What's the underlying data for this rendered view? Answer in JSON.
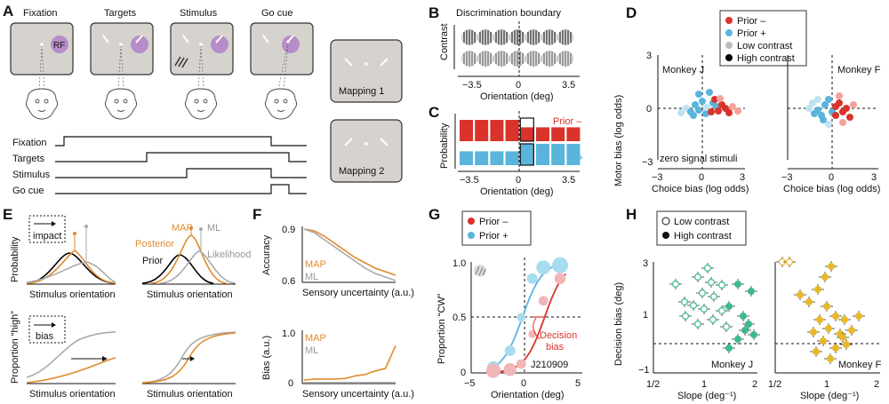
{
  "panel_letters": {
    "A": "A",
    "B": "B",
    "C": "C",
    "D": "D",
    "E": "E",
    "F": "F",
    "G": "G",
    "H": "H"
  },
  "panelA": {
    "screens": [
      "Fixation",
      "Targets",
      "Stimulus",
      "Go cue"
    ],
    "rf_label": "RF",
    "timeline_labels": [
      "Fixation",
      "Targets",
      "Stimulus",
      "Go cue"
    ],
    "mapping1": "Mapping 1",
    "mapping2": "Mapping 2"
  },
  "panelB": {
    "title": "Discrimination boundary",
    "ylabel": "Contrast",
    "xlabel": "Orientation (deg)",
    "ticks": [
      "−3.5",
      "0",
      "3.5"
    ]
  },
  "panelC": {
    "ylabel": "Probability",
    "xlabel": "Orientation (deg)",
    "ticks": [
      "−3.5",
      "0",
      "3.5"
    ],
    "prior_minus": "Prior –",
    "prior_plus": "+",
    "colors": {
      "prior_minus": "#d9332b",
      "prior_plus": "#5ab4dc"
    },
    "bar_heights_minus": [
      1,
      1,
      1,
      1,
      0.65,
      0.65,
      0.65,
      0.65
    ],
    "bar_heights_plus": [
      0.65,
      0.65,
      0.65,
      0.65,
      1,
      1,
      1,
      1
    ]
  },
  "panelD": {
    "legend": [
      "Prior –",
      "Prior +",
      "Low contrast",
      "High contrast"
    ],
    "legend_colors": [
      "#d9332b",
      "#5ab4dc",
      "#bbbbbb",
      "#000000"
    ],
    "monkeyJ": "Monkey J",
    "monkeyF": "Monkey F",
    "ylabel": "Motor bias (log odds)",
    "xlabel": "Choice bias (log odds)",
    "note": "zero signal stimuli",
    "yticks": [
      "3",
      "0",
      "−3"
    ],
    "xticks": [
      "−3",
      "0",
      "3"
    ]
  },
  "panelE": {
    "impact": "impact",
    "bias": "bias",
    "ylabel_top": "Probability",
    "ylabel_bottom": "Proportion “high”",
    "xlabel": "Stimulus orientation",
    "map": "MAP",
    "ml": "ML",
    "posterior": "Posterior",
    "prior": "Prior",
    "likelihood": "Likelihood"
  },
  "panelF": {
    "ylabel_top": "Accuracy",
    "ylabel_bottom": "Bias (a.u.)",
    "xlabel": "Sensory uncertainty (a.u.)",
    "map": "MAP",
    "ml": "ML",
    "ticks_top": [
      "0.9",
      "0.6"
    ],
    "ticks_bottom": [
      "1.0",
      "0"
    ],
    "chart_data": [
      {
        "type": "line",
        "ylabel": "Accuracy",
        "ylim": [
          0.6,
          0.9
        ],
        "xlabel": "Sensory uncertainty (a.u.)",
        "x": [
          0,
          1,
          2,
          3,
          4,
          5,
          6,
          7,
          8,
          9
        ],
        "series": [
          {
            "name": "MAP",
            "values": [
              0.9,
              0.89,
              0.86,
              0.82,
              0.78,
              0.74,
              0.71,
              0.68,
              0.66,
              0.64
            ]
          },
          {
            "name": "ML",
            "values": [
              0.9,
              0.88,
              0.84,
              0.8,
              0.76,
              0.72,
              0.68,
              0.65,
              0.63,
              0.61
            ]
          }
        ]
      },
      {
        "type": "line",
        "ylabel": "Bias (a.u.)",
        "ylim": [
          0,
          1.0
        ],
        "xlabel": "Sensory uncertainty (a.u.)",
        "x": [
          0,
          1,
          2,
          3,
          4,
          5,
          6,
          7,
          8,
          9
        ],
        "series": [
          {
            "name": "MAP",
            "values": [
              0.07,
              0.09,
              0.09,
              0.09,
              0.1,
              0.15,
              0.18,
              0.25,
              0.3,
              0.75
            ]
          },
          {
            "name": "ML",
            "values": [
              0.02,
              0.02,
              0.02,
              0.02,
              0.02,
              0.02,
              0.02,
              0.02,
              0.02,
              0.02
            ]
          }
        ]
      }
    ]
  },
  "panelG": {
    "legend": [
      "Prior –",
      "Prior +"
    ],
    "ylabel": "Proportion “CW”",
    "xlabel": "Orientation (deg)",
    "yticks": [
      "1.0",
      "0.5",
      "0"
    ],
    "xticks": [
      "−5",
      "0",
      "5"
    ],
    "decision": "Decision",
    "bias": "bias",
    "session": "J210909",
    "chart_data": {
      "type": "scatter",
      "x": [
        -3,
        -1.5,
        -0.5,
        0.5,
        1.5,
        3
      ],
      "series": [
        {
          "name": "Prior –",
          "values": [
            0.02,
            0.03,
            0.08,
            0.35,
            0.65,
            0.85
          ]
        },
        {
          "name": "Prior +",
          "values": [
            0.05,
            0.2,
            0.5,
            0.85,
            0.95,
            0.97
          ]
        }
      ],
      "xlim": [
        -5,
        5
      ],
      "ylim": [
        0,
        1
      ]
    }
  },
  "panelH": {
    "legend": [
      "Low contrast",
      "High contrast"
    ],
    "ylabel": "Decision bias (deg)",
    "xlabel": "Slope (deg⁻¹)",
    "yticks": [
      "3",
      "1",
      "−1"
    ],
    "xticks": [
      "1/2",
      "1",
      "2"
    ],
    "monkeyJ": "Monkey J",
    "monkeyF": "Monkey F"
  }
}
